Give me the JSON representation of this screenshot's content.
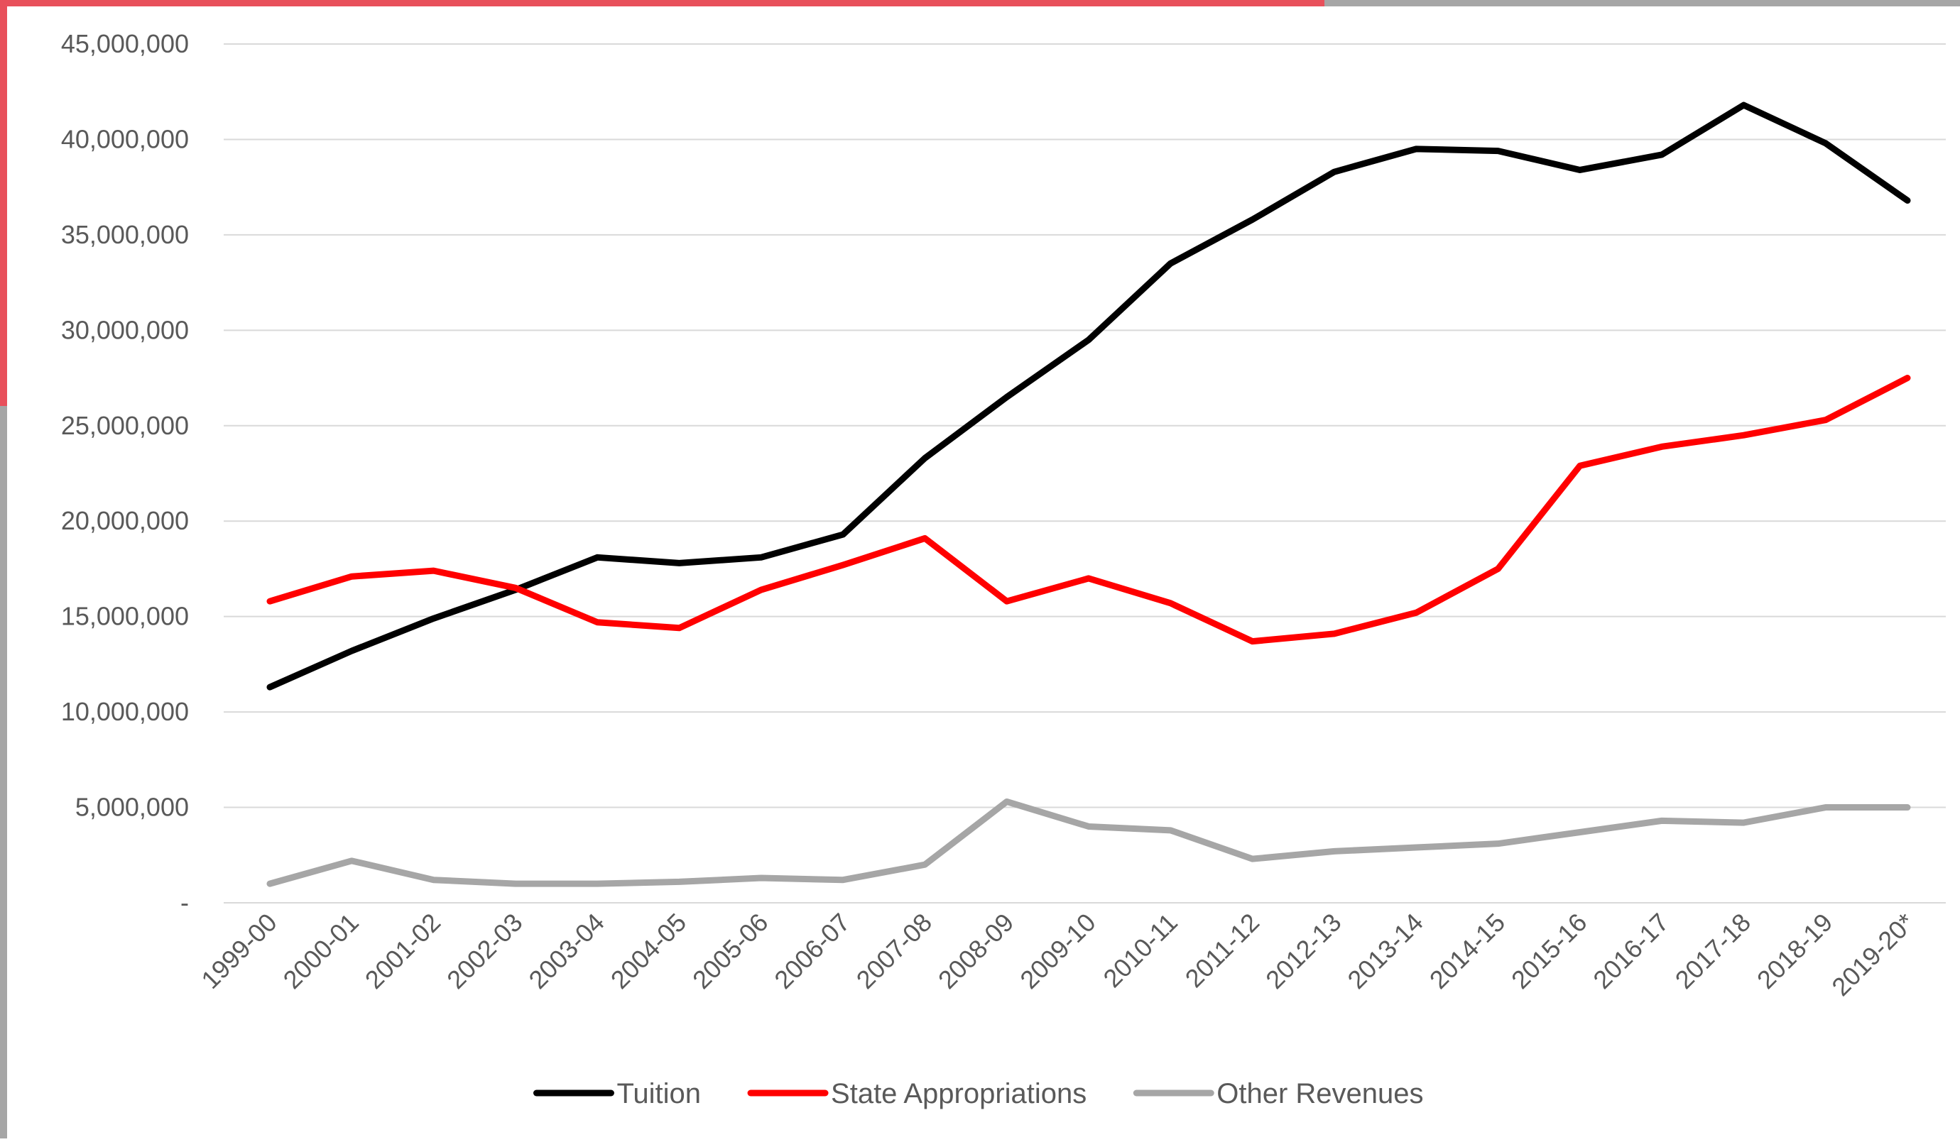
{
  "colors": {
    "background": "#ffffff",
    "grid": "#d9d9d9",
    "axis_text": "#595959",
    "frame_accent_red": "#e8505b",
    "frame_accent_gray": "#a6a6a6"
  },
  "chart_data": {
    "type": "line",
    "title": "",
    "xlabel": "",
    "ylabel": "",
    "ylim": [
      0,
      45000000
    ],
    "y_ticks": [
      0,
      5000000,
      10000000,
      15000000,
      20000000,
      25000000,
      30000000,
      35000000,
      40000000,
      45000000
    ],
    "y_tick_labels": [
      "-",
      "5,000,000",
      "10,000,000",
      "15,000,000",
      "20,000,000",
      "25,000,000",
      "30,000,000",
      "35,000,000",
      "40,000,000",
      "45,000,000"
    ],
    "grid": true,
    "legend_position": "bottom",
    "categories": [
      "1999-00",
      "2000-01",
      "2001-02",
      "2002-03",
      "2003-04",
      "2004-05",
      "2005-06",
      "2006-07",
      "2007-08",
      "2008-09",
      "2009-10",
      "2010-11",
      "2011-12",
      "2012-13",
      "2013-14",
      "2014-15",
      "2015-16",
      "2016-17",
      "2017-18",
      "2018-19",
      "2019-20*"
    ],
    "series": [
      {
        "name": "Tuition",
        "color": "#000000",
        "values": [
          11300000,
          13200000,
          14900000,
          16400000,
          18100000,
          17800000,
          18100000,
          19300000,
          23300000,
          26500000,
          29500000,
          33500000,
          35800000,
          38300000,
          39500000,
          39400000,
          38400000,
          39200000,
          41800000,
          39800000,
          36800000
        ]
      },
      {
        "name": "State Appropriations",
        "color": "#ff0000",
        "values": [
          15800000,
          17100000,
          17400000,
          16500000,
          14700000,
          14400000,
          16400000,
          17700000,
          19100000,
          15800000,
          17000000,
          15700000,
          13700000,
          14100000,
          15200000,
          17500000,
          22900000,
          23900000,
          24500000,
          25300000,
          27500000
        ]
      },
      {
        "name": "Other Revenues",
        "color": "#a6a6a6",
        "values": [
          1000000,
          2200000,
          1200000,
          1000000,
          1000000,
          1100000,
          1300000,
          1200000,
          2000000,
          5300000,
          4000000,
          3800000,
          2300000,
          2700000,
          2900000,
          3100000,
          3700000,
          4300000,
          4200000,
          5000000,
          5000000
        ]
      }
    ]
  }
}
